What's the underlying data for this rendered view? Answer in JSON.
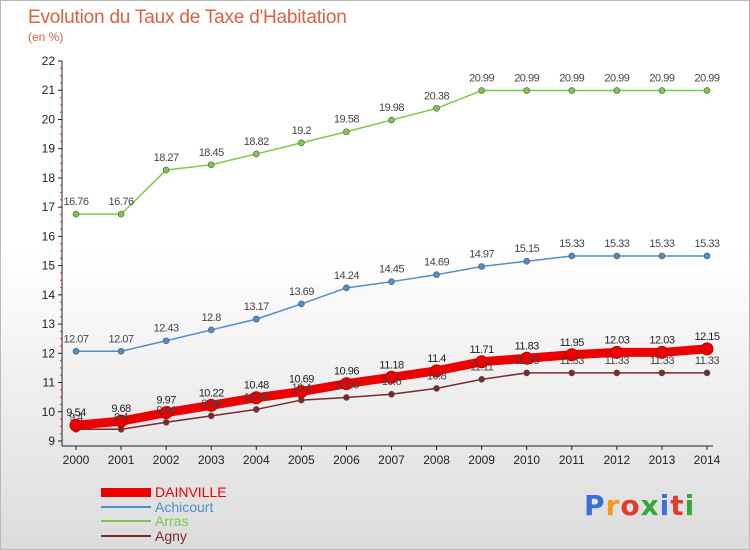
{
  "header": {
    "title": "Evolution du Taux de Taxe d'Habitation",
    "subtitle": "(en %)"
  },
  "logo": {
    "text": "Proxiti",
    "colors": [
      "#3a6fd8",
      "#f39a1f",
      "#e23b2e",
      "#36a83a",
      "#3a6fd8",
      "#e23b2e",
      "#36a83a"
    ]
  },
  "chart_data": {
    "type": "line",
    "x": [
      "2000",
      "2001",
      "2002",
      "2003",
      "2004",
      "2005",
      "2006",
      "2007",
      "2008",
      "2009",
      "2010",
      "2011",
      "2012",
      "2013",
      "2014"
    ],
    "ylim": [
      9,
      22
    ],
    "yticks": [
      9,
      10,
      11,
      12,
      13,
      14,
      15,
      16,
      17,
      18,
      19,
      20,
      21,
      22
    ],
    "grid": "none",
    "legend_position": "bottom-left",
    "series": [
      {
        "name": "DAINVILLE",
        "color": "#ee0000",
        "emphasis": true,
        "values": [
          9.54,
          9.68,
          9.97,
          10.22,
          10.48,
          10.69,
          10.96,
          11.18,
          11.4,
          11.71,
          11.83,
          11.95,
          12.03,
          12.03,
          12.15
        ],
        "labels": [
          "9.54",
          "9.68",
          "9.97",
          "10.22",
          "10.48",
          "10.69",
          "10.96",
          "11.18",
          "11.4",
          "11.71",
          "11.83",
          "11.95",
          "12.03",
          "12.03",
          "12.15"
        ]
      },
      {
        "name": "Achicourt",
        "color": "#4d8ecb",
        "values": [
          12.07,
          12.07,
          12.43,
          12.8,
          13.17,
          13.69,
          14.24,
          14.45,
          14.69,
          14.97,
          15.15,
          15.33,
          15.33,
          15.33,
          15.33
        ],
        "labels": [
          "12.07",
          "12.07",
          "12.43",
          "12.8",
          "13.17",
          "13.69",
          "14.24",
          "14.45",
          "14.69",
          "14.97",
          "15.15",
          "15.33",
          "15.33",
          "15.33",
          "15.33"
        ]
      },
      {
        "name": "Arras",
        "color": "#7cc94a",
        "values": [
          16.76,
          16.76,
          18.27,
          18.45,
          18.82,
          19.2,
          19.58,
          19.98,
          20.38,
          20.99,
          20.99,
          20.99,
          20.99,
          20.99,
          20.99
        ],
        "labels": [
          "16.76",
          "16.76",
          "18.27",
          "18.45",
          "18.82",
          "19.2",
          "19.58",
          "19.98",
          "20.38",
          "20.99",
          "20.99",
          "20.99",
          "20.99",
          "20.99",
          "20.99"
        ]
      },
      {
        "name": "Agny",
        "color": "#7a2a2a",
        "values": [
          9.4,
          9.4,
          9.64,
          9.86,
          10.08,
          10.4,
          10.49,
          10.6,
          10.8,
          11.11,
          11.33,
          11.33,
          11.33,
          11.33,
          11.33
        ],
        "labels": [
          "9.4",
          "9.4",
          "9.64",
          "9.86",
          "10.08",
          "10.4",
          "10.49",
          "10.6",
          "10.8",
          "11.11",
          "11.33",
          "11.33",
          "11.33",
          "11.33",
          "11.33"
        ]
      }
    ]
  }
}
